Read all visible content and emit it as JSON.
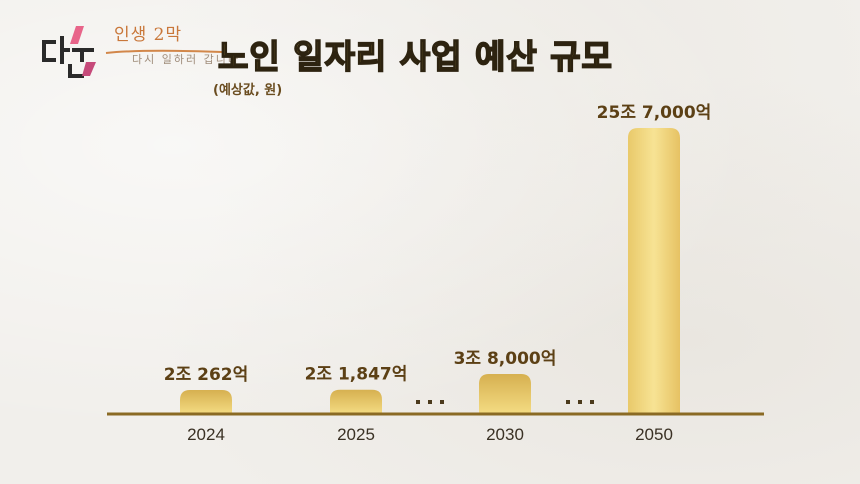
{
  "logo": {
    "name": "인생 2막",
    "tagline": "다시 일하러 갑니다"
  },
  "title": "노인 일자리 사업 예산 규모",
  "subtitle": "(예상값, 원)",
  "colors": {
    "bar_top": "#d9b659",
    "bar_bottom": "#f6e08a",
    "baseline": "#8a6a24",
    "title_fill": "#f7d866",
    "label": "#5c4015"
  },
  "chart_data": {
    "type": "bar",
    "title": "노인 일자리 사업 예산 규모",
    "subtitle": "(예상값, 원)",
    "categories": [
      "2024",
      "2025",
      "2030",
      "2050"
    ],
    "values": [
      20262,
      21847,
      38000,
      257000
    ],
    "value_unit": "억 원",
    "data_labels": [
      "2조 262억",
      "2조 1,847억",
      "3조 8,000억",
      "25조 7,000억"
    ],
    "axis_break_marker": "· · ·",
    "grid": false,
    "legend": "none"
  }
}
